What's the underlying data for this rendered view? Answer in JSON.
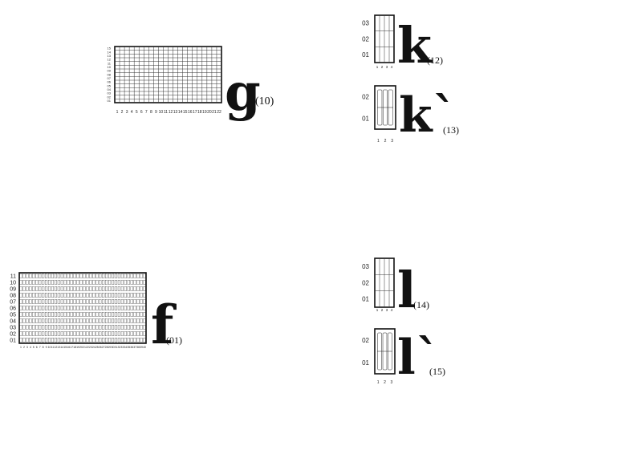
{
  "panels": [
    {
      "id": "g",
      "letter": "g",
      "code": "(10)",
      "cols": 22,
      "rows": 15,
      "col_labels": [
        "1",
        "2",
        "3",
        "4",
        "5",
        "6",
        "7",
        "8",
        "9",
        "10",
        "11",
        "12",
        "13",
        "14",
        "15",
        "16",
        "17",
        "18",
        "19",
        "20",
        "21",
        "22"
      ],
      "row_labels": [
        "15",
        "14",
        "13",
        "12",
        "11",
        "10",
        "09",
        "08",
        "07",
        "06",
        "05",
        "04",
        "03",
        "02",
        "01"
      ],
      "style": "grid"
    },
    {
      "id": "k",
      "letter": "k",
      "code": "(12)",
      "cols": 4,
      "rows": 3,
      "col_labels": [
        "1",
        "2",
        "3",
        "4"
      ],
      "row_labels": [
        "03",
        "02",
        "01"
      ],
      "style": "grid"
    },
    {
      "id": "k2",
      "letter": "k`",
      "code": "(13)",
      "cols": 3,
      "rows": 2,
      "col_labels": [
        "1",
        "2",
        "3"
      ],
      "row_labels": [
        "02",
        "01"
      ],
      "style": "slots"
    },
    {
      "id": "f",
      "letter": "f",
      "code": "(01)",
      "cols": 40,
      "rows": 11,
      "col_labels": [
        "1",
        "2",
        "3",
        "4",
        "5",
        "6",
        "7",
        "8",
        "9",
        "10",
        "11",
        "12",
        "13",
        "14",
        "15",
        "16",
        "17",
        "18",
        "19",
        "20",
        "21",
        "22",
        "23",
        "24",
        "25",
        "26",
        "27",
        "28",
        "29",
        "30",
        "31",
        "32",
        "33",
        "34",
        "35",
        "36",
        "37",
        "38",
        "39",
        "40"
      ],
      "row_labels": [
        "11",
        "10",
        "09",
        "08",
        "07",
        "06",
        "05",
        "04",
        "03",
        "02",
        "01"
      ],
      "style": "cells"
    },
    {
      "id": "l",
      "letter": "l",
      "code": "(14)",
      "cols": 4,
      "rows": 3,
      "col_labels": [
        "1",
        "2",
        "3",
        "4"
      ],
      "row_labels": [
        "03",
        "02",
        "01"
      ],
      "style": "grid"
    },
    {
      "id": "l2",
      "letter": "l`",
      "code": "(15)",
      "cols": 3,
      "rows": 2,
      "col_labels": [
        "1",
        "2",
        "3"
      ],
      "row_labels": [
        "02",
        "01"
      ],
      "style": "slots"
    }
  ]
}
